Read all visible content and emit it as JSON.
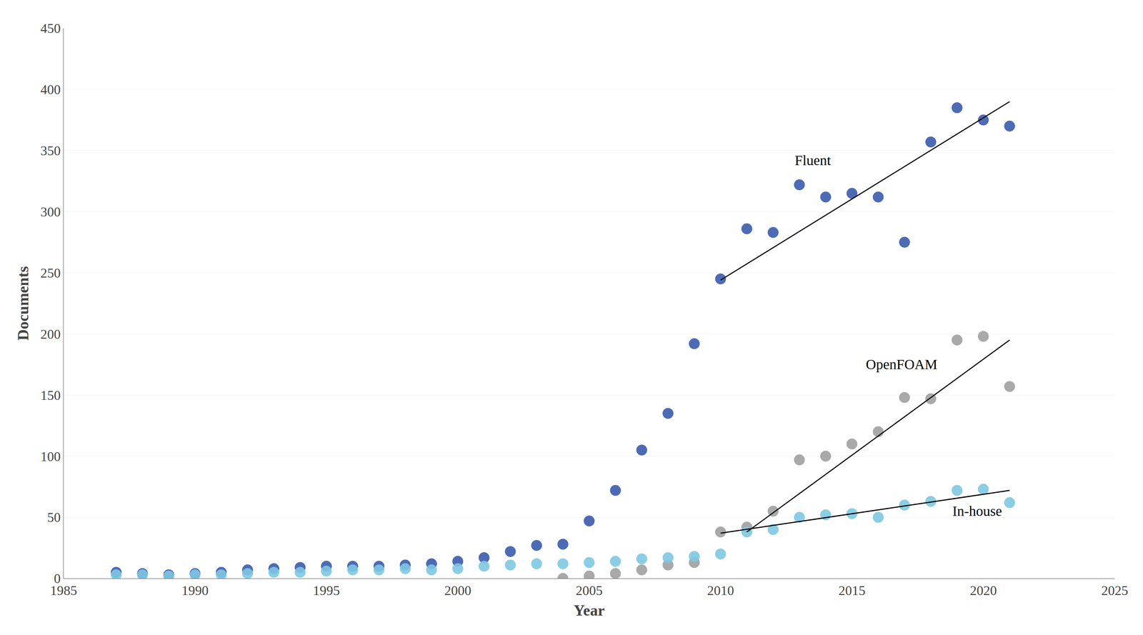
{
  "chart_data": {
    "type": "scatter",
    "xlabel": "Year",
    "ylabel": "Documents",
    "xlim": [
      1985,
      2025
    ],
    "ylim": [
      0,
      450
    ],
    "xticks": [
      1985,
      1990,
      1995,
      2000,
      2005,
      2010,
      2015,
      2020,
      2025
    ],
    "yticks": [
      0,
      50,
      100,
      150,
      200,
      250,
      300,
      350,
      400,
      450
    ],
    "grid": "y",
    "series": [
      {
        "type": "scatter",
        "marker": "circle",
        "color": "#3A5BAE",
        "x": [
          1987,
          1988,
          1989,
          1990,
          1991,
          1992,
          1993,
          1994,
          1995,
          1996,
          1997,
          1998,
          1999,
          2000,
          2001,
          2002,
          2003,
          2004,
          2005,
          2006,
          2007,
          2008,
          2009,
          2010,
          2011,
          2012,
          2013,
          2014,
          2015,
          2016,
          2017,
          2018,
          2019,
          2020,
          2021
        ],
        "values": [
          5,
          4,
          3,
          4,
          5,
          7,
          8,
          9,
          10,
          10,
          10,
          11,
          12,
          14,
          17,
          22,
          27,
          28,
          47,
          72,
          105,
          135,
          192,
          245,
          286,
          283,
          322,
          312,
          315,
          312,
          275,
          357,
          385,
          375,
          370
        ]
      },
      {
        "type": "scatter",
        "marker": "circle",
        "color": "#A0A0A0",
        "x": [
          2004,
          2005,
          2006,
          2007,
          2008,
          2009,
          2010,
          2011,
          2012,
          2013,
          2014,
          2015,
          2016,
          2017,
          2018,
          2019,
          2020,
          2021
        ],
        "values": [
          0,
          2,
          4,
          7,
          11,
          13,
          38,
          42,
          55,
          97,
          100,
          110,
          120,
          148,
          147,
          195,
          198,
          157
        ]
      },
      {
        "type": "scatter",
        "marker": "circle",
        "color": "#7EC8E3",
        "x": [
          1987,
          1988,
          1989,
          1990,
          1991,
          1992,
          1993,
          1994,
          1995,
          1996,
          1997,
          1998,
          1999,
          2000,
          2001,
          2002,
          2003,
          2004,
          2005,
          2006,
          2007,
          2008,
          2009,
          2010,
          2011,
          2012,
          2013,
          2014,
          2015,
          2016,
          2017,
          2018,
          2019,
          2020,
          2021
        ],
        "values": [
          3,
          3,
          2,
          3,
          3,
          4,
          5,
          5,
          6,
          7,
          7,
          8,
          7,
          8,
          10,
          11,
          12,
          12,
          13,
          14,
          16,
          17,
          18,
          20,
          38,
          40,
          50,
          52,
          53,
          50,
          60,
          63,
          72,
          73,
          62
        ]
      },
      {
        "type": "line",
        "line_style": "solid",
        "color": "#000000",
        "x": [
          2010,
          2021
        ],
        "values": [
          244,
          390
        ]
      },
      {
        "type": "line",
        "line_style": "solid",
        "color": "#000000",
        "x": [
          2011,
          2021
        ],
        "values": [
          38,
          195
        ]
      },
      {
        "type": "line",
        "line_style": "solid",
        "color": "#000000",
        "x": [
          2010,
          2021
        ],
        "values": [
          37,
          72
        ]
      }
    ],
    "annotations": [
      {
        "text": "Fluent",
        "x": 2012.8,
        "y": 335
      },
      {
        "text": "OpenFOAM",
        "x": 2015.5,
        "y": 168
      },
      {
        "text": "In-house",
        "x": 2018.8,
        "y": 48
      }
    ]
  }
}
